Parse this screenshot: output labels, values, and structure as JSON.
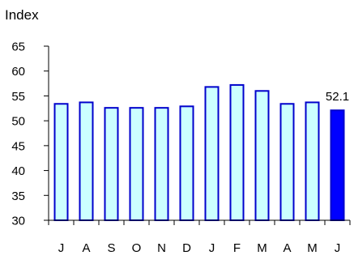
{
  "chart_data": {
    "type": "bar",
    "title": "",
    "ylabel": "Index",
    "xlabel": "",
    "categories": [
      "J",
      "A",
      "S",
      "O",
      "N",
      "D",
      "J",
      "F",
      "M",
      "A",
      "M",
      "J"
    ],
    "values": [
      53.4,
      53.7,
      52.6,
      52.6,
      52.6,
      52.9,
      56.8,
      57.2,
      56.0,
      53.4,
      53.7,
      52.1
    ],
    "ylim": [
      30,
      65
    ],
    "yticks": [
      30,
      35,
      40,
      45,
      50,
      55,
      60,
      65
    ],
    "grid": false,
    "legend": "none",
    "annotations": [
      {
        "index": 11,
        "text": "52.1"
      }
    ],
    "colors": {
      "bar_fill": "#ccffff",
      "bar_stroke": "#0000cc",
      "highlight_fill": "#0000ff",
      "highlight_stroke": "#0000cc",
      "axis": "#000000"
    },
    "highlight_index": 11
  }
}
